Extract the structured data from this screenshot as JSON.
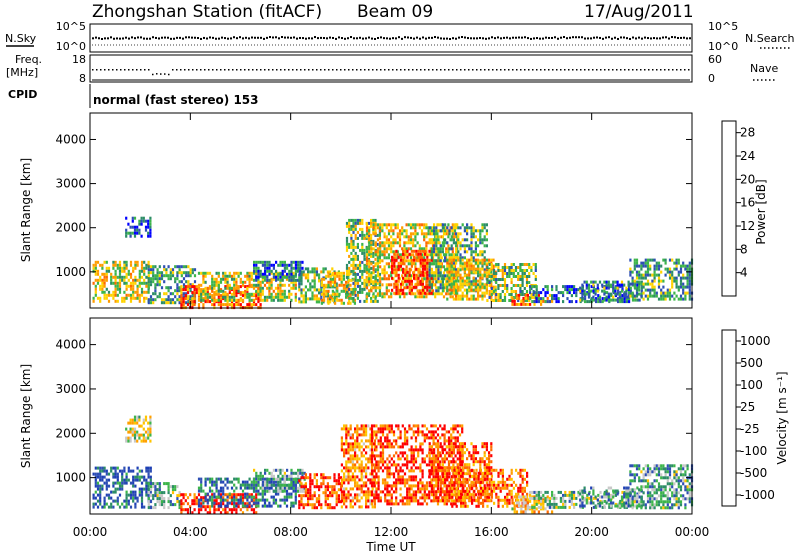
{
  "header": {
    "title": "Zhongshan Station (fitACF)",
    "beam": "Beam 09",
    "date": "17/Aug/2011"
  },
  "top_panels": {
    "nsky_label": "N.Sky",
    "nsky_ticks": [
      "10^5",
      "10^0"
    ],
    "nsearch_label": "N.Search",
    "nsearch_ticks": [
      "10^5",
      "10^0"
    ],
    "freq_label": "Freq.",
    "freq_unit": "[MHz]",
    "freq_ticks": [
      "18",
      "8"
    ],
    "nave_label": "Nave",
    "nave_ticks": [
      "60",
      "0"
    ],
    "cpid_label": "CPID",
    "cpid_text": "normal (fast stereo) 153"
  },
  "colors": {
    "power": [
      "#0000ff",
      "#2e4fb4",
      "#2c8d66",
      "#3cb54a",
      "#ffd300",
      "#ff9d00",
      "#ff6a00",
      "#ff0000"
    ],
    "velocity": [
      "#ff0000",
      "#ff6a00",
      "#ffa000",
      "#ffc400",
      "#c8c8c8",
      "#3cb54a",
      "#2c8d66",
      "#2e4fb4",
      "#1e40b4"
    ]
  },
  "chart_data": [
    {
      "type": "heatmap",
      "name": "power-panel",
      "ylabel": "Slant Range [km]",
      "xlabel": "",
      "x_ticks": [
        "00:00",
        "04:00",
        "08:00",
        "12:00",
        "16:00",
        "20:00",
        "00:00"
      ],
      "x_range_hours": [
        0,
        24
      ],
      "y_ticks": [
        "1000",
        "2000",
        "3000",
        "4000"
      ],
      "ylim": [
        180,
        4600
      ],
      "colorbar_label": "Power [dB]",
      "colorbar_ticks": [
        "4",
        "8",
        "12",
        "16",
        "20",
        "24",
        "28"
      ],
      "colorbar_range": [
        0,
        30
      ],
      "regions": [
        {
          "t": [
            0.1,
            2.3
          ],
          "r": [
            350,
            1250
          ],
          "lvl": 0.55
        },
        {
          "t": [
            1.4,
            2.4
          ],
          "r": [
            1800,
            2250
          ],
          "lvl": 0.2
        },
        {
          "t": [
            2.3,
            4.2
          ],
          "r": [
            300,
            1150
          ],
          "lvl": 0.35
        },
        {
          "t": [
            3.6,
            6.8
          ],
          "r": [
            200,
            700
          ],
          "lvl": 0.8
        },
        {
          "t": [
            4.3,
            8.2
          ],
          "r": [
            350,
            1000
          ],
          "lvl": 0.55
        },
        {
          "t": [
            6.5,
            8.5
          ],
          "r": [
            800,
            1250
          ],
          "lvl": 0.25
        },
        {
          "t": [
            8.3,
            9.9
          ],
          "r": [
            300,
            1100
          ],
          "lvl": 0.45
        },
        {
          "t": [
            9.2,
            10.6
          ],
          "r": [
            300,
            1000
          ],
          "lvl": 0.6
        },
        {
          "t": [
            10.2,
            11.6
          ],
          "r": [
            350,
            2200
          ],
          "lvl": 0.45
        },
        {
          "t": [
            11.0,
            14.6
          ],
          "r": [
            400,
            2100
          ],
          "lvl": 0.6
        },
        {
          "t": [
            12.0,
            13.6
          ],
          "r": [
            500,
            1500
          ],
          "lvl": 0.9
        },
        {
          "t": [
            13.5,
            15.8
          ],
          "r": [
            600,
            2100
          ],
          "lvl": 0.4
        },
        {
          "t": [
            14.2,
            16.2
          ],
          "r": [
            350,
            1300
          ],
          "lvl": 0.6
        },
        {
          "t": [
            15.8,
            17.8
          ],
          "r": [
            350,
            1200
          ],
          "lvl": 0.45
        },
        {
          "t": [
            16.8,
            18.4
          ],
          "r": [
            250,
            500
          ],
          "lvl": 0.75
        },
        {
          "t": [
            17.5,
            21.5
          ],
          "r": [
            300,
            700
          ],
          "lvl": 0.25
        },
        {
          "t": [
            19.5,
            22.0
          ],
          "r": [
            350,
            800
          ],
          "lvl": 0.3
        },
        {
          "t": [
            21.5,
            24.0
          ],
          "r": [
            350,
            1300
          ],
          "lvl": 0.35
        }
      ]
    },
    {
      "type": "heatmap",
      "name": "velocity-panel",
      "ylabel": "Slant Range [km]",
      "xlabel": "Time UT",
      "x_ticks": [
        "00:00",
        "04:00",
        "08:00",
        "12:00",
        "16:00",
        "20:00",
        "00:00"
      ],
      "x_range_hours": [
        0,
        24
      ],
      "y_ticks": [
        "1000",
        "2000",
        "3000",
        "4000"
      ],
      "ylim": [
        180,
        4600
      ],
      "colorbar_label": "Velocity [m s⁻¹]",
      "colorbar_ticks": [
        "1000",
        "500",
        "100",
        "25",
        "-25",
        "-100",
        "-500",
        "-1000"
      ],
      "regions": [
        {
          "t": [
            0.1,
            2.4
          ],
          "r": [
            350,
            1250
          ],
          "lvl": 0.85
        },
        {
          "t": [
            1.4,
            2.4
          ],
          "r": [
            1800,
            2400
          ],
          "lvl": 0.45
        },
        {
          "t": [
            2.3,
            3.6
          ],
          "r": [
            350,
            900
          ],
          "lvl": 0.65
        },
        {
          "t": [
            3.6,
            6.6
          ],
          "r": [
            200,
            650
          ],
          "lvl": 0.05
        },
        {
          "t": [
            4.3,
            8.2
          ],
          "r": [
            350,
            1000
          ],
          "lvl": 0.8
        },
        {
          "t": [
            6.5,
            8.6
          ],
          "r": [
            700,
            1200
          ],
          "lvl": 0.65
        },
        {
          "t": [
            8.3,
            10.0
          ],
          "r": [
            300,
            1100
          ],
          "lvl": 0.1
        },
        {
          "t": [
            10.0,
            11.4
          ],
          "r": [
            350,
            2200
          ],
          "lvl": 0.25
        },
        {
          "t": [
            11.2,
            14.8
          ],
          "r": [
            400,
            2200
          ],
          "lvl": 0.1
        },
        {
          "t": [
            13.5,
            16.0
          ],
          "r": [
            500,
            1800
          ],
          "lvl": 0.15
        },
        {
          "t": [
            14.4,
            17.4
          ],
          "r": [
            350,
            1200
          ],
          "lvl": 0.2
        },
        {
          "t": [
            16.8,
            18.4
          ],
          "r": [
            250,
            600
          ],
          "lvl": 0.35
        },
        {
          "t": [
            17.5,
            21.5
          ],
          "r": [
            300,
            700
          ],
          "lvl": 0.6
        },
        {
          "t": [
            19.5,
            22.0
          ],
          "r": [
            350,
            800
          ],
          "lvl": 0.7
        },
        {
          "t": [
            21.5,
            24.0
          ],
          "r": [
            350,
            1300
          ],
          "lvl": 0.65
        }
      ]
    }
  ]
}
